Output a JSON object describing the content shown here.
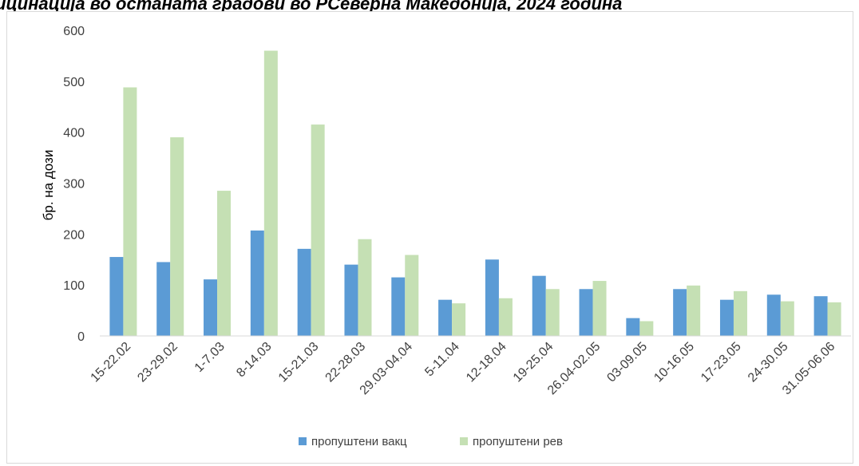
{
  "chart_data": {
    "type": "bar",
    "title": "ицинација во останата градови во РСеверна Македонија, 2024 година",
    "ylabel": "бр. на дози",
    "xlabel": "",
    "ylim": [
      0,
      600
    ],
    "yticks": [
      0,
      100,
      200,
      300,
      400,
      500,
      600
    ],
    "categories": [
      "15-22.02",
      "23-29.02",
      "1-7.03",
      "8-14.03",
      "15-21.03",
      "22-28.03",
      "29.03-04.04",
      "5-11.04",
      "12-18.04",
      "19-25.04",
      "26.04-02.05",
      "03-09.05",
      "10-16.05",
      "17-23.05",
      "24-30.05",
      "31.05-06.06"
    ],
    "series": [
      {
        "name": "пропуштени вакц",
        "color": "#5b9bd5",
        "values": [
          155,
          145,
          111,
          207,
          171,
          140,
          115,
          71,
          150,
          118,
          92,
          35,
          92,
          71,
          81,
          78
        ]
      },
      {
        "name": "пропуштени рев",
        "color": "#c5e0b4",
        "values": [
          488,
          390,
          285,
          560,
          415,
          190,
          159,
          64,
          74,
          92,
          108,
          29,
          99,
          88,
          68,
          66
        ]
      }
    ],
    "grid": false,
    "legend_position": "bottom"
  }
}
